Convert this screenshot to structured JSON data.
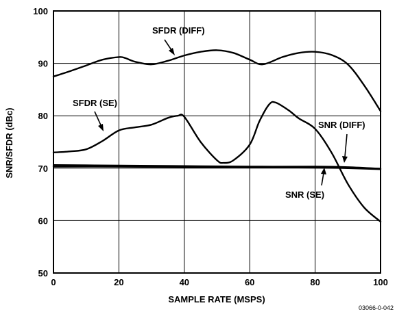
{
  "chart_data": {
    "type": "line",
    "xlabel": "SAMPLE RATE (MSPS)",
    "ylabel": "SNR/SFDR (dBc)",
    "xlim": [
      0,
      100
    ],
    "ylim": [
      50,
      100
    ],
    "xticks": [
      "0",
      "20",
      "40",
      "60",
      "80",
      "100"
    ],
    "yticks": [
      "50",
      "60",
      "70",
      "80",
      "90",
      "100"
    ],
    "grid": true,
    "legend": "none",
    "series": [
      {
        "name": "SFDR (DIFF)",
        "x": [
          0,
          5,
          10,
          15,
          20,
          22,
          25,
          30,
          35,
          40,
          45,
          50,
          55,
          60,
          64,
          70,
          75,
          80,
          85,
          90,
          95,
          100
        ],
        "y": [
          87.5,
          88.5,
          89.6,
          90.7,
          91.2,
          91.0,
          90.3,
          89.8,
          90.5,
          91.5,
          92.2,
          92.5,
          92.0,
          90.7,
          89.8,
          91.2,
          92.0,
          92.2,
          91.6,
          89.8,
          85.8,
          80.9
        ]
      },
      {
        "name": "SFDR (SE)",
        "x": [
          0,
          5,
          10,
          15,
          20,
          25,
          30,
          35,
          38,
          40,
          45,
          50,
          52,
          55,
          60,
          63,
          66,
          68,
          72,
          75,
          80,
          85,
          90,
          95,
          100
        ],
        "y": [
          73.0,
          73.2,
          73.6,
          75.2,
          77.2,
          77.8,
          78.3,
          79.6,
          80.0,
          79.8,
          75.0,
          71.5,
          71.0,
          71.5,
          74.5,
          79.0,
          82.2,
          82.5,
          81.0,
          79.5,
          77.5,
          73.0,
          67.0,
          62.5,
          59.8
        ]
      },
      {
        "name": "SNR (DIFF)",
        "x": [
          0,
          20,
          40,
          60,
          80,
          90,
          100
        ],
        "y": [
          70.6,
          70.5,
          70.4,
          70.3,
          70.3,
          70.2,
          69.9
        ]
      },
      {
        "name": "SNR (SE)",
        "x": [
          0,
          20,
          40,
          60,
          80,
          90,
          100
        ],
        "y": [
          70.3,
          70.3,
          70.2,
          70.2,
          70.1,
          70.0,
          69.8
        ]
      }
    ],
    "annotations": [
      {
        "text": "SFDR (DIFF)"
      },
      {
        "text": "SFDR (SE)"
      },
      {
        "text": "SNR (DIFF)"
      },
      {
        "text": "SNR (SE)"
      }
    ],
    "figure_id": "03066-0-042"
  }
}
